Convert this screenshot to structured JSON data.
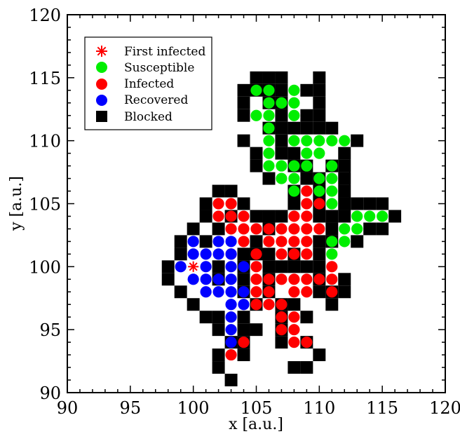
{
  "chart_data": {
    "type": "scatter",
    "xlabel": "x [a.u.]",
    "ylabel": "y [a.u.]",
    "xlim": [
      90,
      120
    ],
    "ylim": [
      90,
      120
    ],
    "x_ticks": [
      "90",
      "95",
      "100",
      "105",
      "110",
      "115",
      "120"
    ],
    "y_ticks": [
      "90",
      "95",
      "100",
      "105",
      "110",
      "115",
      "120"
    ],
    "grid": false,
    "legend_position": "top-left",
    "legend": [
      {
        "label": "First infected",
        "marker": "star",
        "color": "#ff0000"
      },
      {
        "label": "Susceptible",
        "marker": "circle",
        "color": "#00ee00"
      },
      {
        "label": "Infected",
        "marker": "circle",
        "color": "#ff0000"
      },
      {
        "label": "Recovered",
        "marker": "circle",
        "color": "#0000ff"
      },
      {
        "label": "Blocked",
        "marker": "square",
        "color": "#000000"
      }
    ],
    "series": [
      {
        "name": "Blocked",
        "color": "#000000",
        "marker": "square",
        "points": [
          [
            106,
            115
          ],
          [
            107,
            115
          ],
          [
            110,
            115
          ],
          [
            105,
            115
          ],
          [
            104,
            114
          ],
          [
            107,
            114
          ],
          [
            109,
            114
          ],
          [
            110,
            114
          ],
          [
            106,
            114
          ],
          [
            105,
            114
          ],
          [
            106,
            113
          ],
          [
            107,
            113
          ],
          [
            104,
            113
          ],
          [
            110,
            113
          ],
          [
            104,
            112
          ],
          [
            107,
            112
          ],
          [
            109,
            112
          ],
          [
            110,
            112
          ],
          [
            109,
            111
          ],
          [
            110,
            111
          ],
          [
            111,
            111
          ],
          [
            107,
            111
          ],
          [
            108,
            111
          ],
          [
            106,
            111
          ],
          [
            104,
            110
          ],
          [
            107,
            110
          ],
          [
            113,
            110
          ],
          [
            105,
            109
          ],
          [
            107,
            109
          ],
          [
            108,
            109
          ],
          [
            112,
            109
          ],
          [
            105,
            108
          ],
          [
            108,
            108
          ],
          [
            109,
            108
          ],
          [
            111,
            108
          ],
          [
            112,
            108
          ],
          [
            106,
            107
          ],
          [
            109,
            107
          ],
          [
            110,
            107
          ],
          [
            112,
            107
          ],
          [
            108,
            106
          ],
          [
            110,
            106
          ],
          [
            112,
            106
          ],
          [
            102,
            106
          ],
          [
            103,
            106
          ],
          [
            101,
            105
          ],
          [
            104,
            105
          ],
          [
            108,
            105
          ],
          [
            110,
            105
          ],
          [
            112,
            105
          ],
          [
            113,
            105
          ],
          [
            114,
            105
          ],
          [
            115,
            105
          ],
          [
            101,
            104
          ],
          [
            103,
            104
          ],
          [
            105,
            104
          ],
          [
            106,
            104
          ],
          [
            107,
            104
          ],
          [
            110,
            104
          ],
          [
            111,
            104
          ],
          [
            112,
            104
          ],
          [
            116,
            104
          ],
          [
            100,
            103
          ],
          [
            102,
            103
          ],
          [
            106,
            103
          ],
          [
            111,
            103
          ],
          [
            114,
            103
          ],
          [
            115,
            103
          ],
          [
            99,
            102
          ],
          [
            101,
            102
          ],
          [
            105,
            102
          ],
          [
            110,
            102
          ],
          [
            111,
            102
          ],
          [
            113,
            102
          ],
          [
            99,
            101
          ],
          [
            104,
            101
          ],
          [
            105,
            101
          ],
          [
            106,
            101
          ],
          [
            110,
            101
          ],
          [
            108,
            101
          ],
          [
            98,
            100
          ],
          [
            102,
            100
          ],
          [
            104,
            100
          ],
          [
            106,
            100
          ],
          [
            107,
            100
          ],
          [
            108,
            100
          ],
          [
            109,
            100
          ],
          [
            110,
            100
          ],
          [
            98,
            99
          ],
          [
            102,
            99
          ],
          [
            104,
            99
          ],
          [
            106,
            99
          ],
          [
            110,
            99
          ],
          [
            112,
            99
          ],
          [
            99,
            98
          ],
          [
            104,
            98
          ],
          [
            106,
            98
          ],
          [
            110,
            98
          ],
          [
            111,
            98
          ],
          [
            112,
            98
          ],
          [
            100,
            97
          ],
          [
            105,
            97
          ],
          [
            107,
            97
          ],
          [
            108,
            97
          ],
          [
            111,
            97
          ],
          [
            101,
            96
          ],
          [
            102,
            96
          ],
          [
            104,
            96
          ],
          [
            107,
            96
          ],
          [
            109,
            96
          ],
          [
            102,
            95
          ],
          [
            104,
            95
          ],
          [
            105,
            95
          ],
          [
            107,
            95
          ],
          [
            103,
            94
          ],
          [
            104,
            94
          ],
          [
            107,
            94
          ],
          [
            109,
            94
          ],
          [
            102,
            93
          ],
          [
            104,
            93
          ],
          [
            110,
            93
          ],
          [
            102,
            92
          ],
          [
            108,
            92
          ],
          [
            109,
            92
          ],
          [
            103,
            91
          ]
        ]
      },
      {
        "name": "Susceptible",
        "color": "#00ee00",
        "marker": "circle",
        "points": [
          [
            105,
            114
          ],
          [
            106,
            114
          ],
          [
            108,
            114
          ],
          [
            106,
            113
          ],
          [
            107,
            113
          ],
          [
            108,
            113
          ],
          [
            105,
            112
          ],
          [
            106,
            112
          ],
          [
            108,
            112
          ],
          [
            106,
            111
          ],
          [
            106,
            110
          ],
          [
            108,
            110
          ],
          [
            109,
            110
          ],
          [
            110,
            110
          ],
          [
            111,
            110
          ],
          [
            112,
            110
          ],
          [
            106,
            109
          ],
          [
            109,
            109
          ],
          [
            110,
            109
          ],
          [
            106,
            108
          ],
          [
            107,
            108
          ],
          [
            108,
            108
          ],
          [
            109,
            108
          ],
          [
            111,
            108
          ],
          [
            107,
            107
          ],
          [
            108,
            107
          ],
          [
            110,
            107
          ],
          [
            111,
            107
          ],
          [
            108,
            106
          ],
          [
            110,
            106
          ],
          [
            111,
            106
          ],
          [
            111,
            105
          ],
          [
            113,
            104
          ],
          [
            114,
            104
          ],
          [
            115,
            104
          ],
          [
            112,
            103
          ],
          [
            113,
            103
          ],
          [
            111,
            102
          ],
          [
            112,
            102
          ],
          [
            111,
            101
          ]
        ]
      },
      {
        "name": "Infected",
        "color": "#ff0000",
        "marker": "circle",
        "points": [
          [
            109,
            106
          ],
          [
            102,
            105
          ],
          [
            103,
            105
          ],
          [
            109,
            105
          ],
          [
            110,
            105
          ],
          [
            102,
            104
          ],
          [
            103,
            104
          ],
          [
            104,
            104
          ],
          [
            108,
            104
          ],
          [
            109,
            104
          ],
          [
            103,
            103
          ],
          [
            104,
            103
          ],
          [
            105,
            103
          ],
          [
            106,
            103
          ],
          [
            107,
            103
          ],
          [
            108,
            103
          ],
          [
            109,
            103
          ],
          [
            110,
            103
          ],
          [
            104,
            102
          ],
          [
            106,
            102
          ],
          [
            107,
            102
          ],
          [
            108,
            102
          ],
          [
            109,
            102
          ],
          [
            103,
            101
          ],
          [
            105,
            101
          ],
          [
            107,
            101
          ],
          [
            108,
            101
          ],
          [
            109,
            101
          ],
          [
            105,
            100
          ],
          [
            111,
            100
          ],
          [
            105,
            99
          ],
          [
            106,
            99
          ],
          [
            107,
            99
          ],
          [
            108,
            99
          ],
          [
            109,
            99
          ],
          [
            110,
            99
          ],
          [
            111,
            99
          ],
          [
            105,
            98
          ],
          [
            106,
            98
          ],
          [
            108,
            98
          ],
          [
            109,
            98
          ],
          [
            111,
            98
          ],
          [
            105,
            97
          ],
          [
            106,
            97
          ],
          [
            107,
            97
          ],
          [
            107,
            96
          ],
          [
            108,
            96
          ],
          [
            107,
            95
          ],
          [
            108,
            95
          ],
          [
            108,
            94
          ],
          [
            109,
            94
          ],
          [
            104,
            94
          ],
          [
            103,
            93
          ]
        ]
      },
      {
        "name": "Recovered",
        "color": "#0000ff",
        "marker": "circle",
        "points": [
          [
            100,
            102
          ],
          [
            102,
            102
          ],
          [
            103,
            102
          ],
          [
            100,
            101
          ],
          [
            101,
            101
          ],
          [
            102,
            101
          ],
          [
            103,
            101
          ],
          [
            99,
            100
          ],
          [
            101,
            100
          ],
          [
            103,
            100
          ],
          [
            104,
            100
          ],
          [
            100,
            99
          ],
          [
            101,
            99
          ],
          [
            102,
            99
          ],
          [
            103,
            99
          ],
          [
            101,
            98
          ],
          [
            102,
            98
          ],
          [
            103,
            98
          ],
          [
            104,
            98
          ],
          [
            103,
            97
          ],
          [
            104,
            97
          ],
          [
            103,
            96
          ],
          [
            103,
            95
          ],
          [
            103,
            94
          ]
        ]
      },
      {
        "name": "First infected",
        "color": "#ff0000",
        "marker": "star",
        "points": [
          [
            100,
            100
          ]
        ]
      }
    ]
  }
}
